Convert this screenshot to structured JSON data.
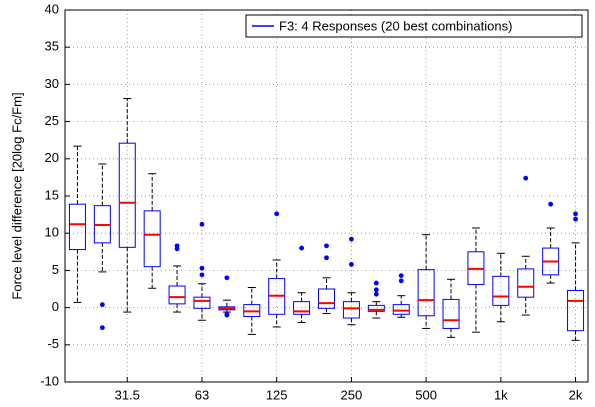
{
  "chart_data": {
    "type": "box",
    "y_label": "Force level difference [20log Fc/Fm]",
    "categories": [
      null,
      null,
      "31.5",
      null,
      null,
      "63",
      null,
      null,
      "125",
      null,
      null,
      "250",
      null,
      null,
      "500",
      null,
      null,
      "1k",
      null,
      null,
      "2k"
    ],
    "ylim": [
      -10,
      40
    ],
    "yticks": [
      -10,
      -5,
      0,
      5,
      10,
      15,
      20,
      25,
      30,
      35,
      40
    ],
    "grid": true,
    "legend": "upper right",
    "series": [
      {
        "name": "F3: 4 Responses (20 best combinations)",
        "color": "#0000ff",
        "median_color": "#ff0000",
        "whisker_color": "#000000",
        "boxes": [
          {
            "whislo": 0.7,
            "q1": 7.8,
            "med": 11.2,
            "q3": 13.9,
            "whishi": 21.7
          },
          {
            "whislo": 4.8,
            "q1": 8.7,
            "med": 11.1,
            "q3": 13.7,
            "whishi": 19.3,
            "fliers": [
              0.4,
              -2.7
            ]
          },
          {
            "whislo": -0.6,
            "q1": 8.1,
            "med": 14.1,
            "q3": 22.1,
            "whishi": 28.1
          },
          {
            "whislo": 2.6,
            "q1": 5.5,
            "med": 9.8,
            "q3": 13.0,
            "whishi": 18.0
          },
          {
            "whislo": -0.6,
            "q1": 0.5,
            "med": 1.4,
            "q3": 2.9,
            "whishi": 5.6,
            "fliers": [
              8.3,
              7.9
            ]
          },
          {
            "whislo": -1.7,
            "q1": -0.1,
            "med": 0.9,
            "q3": 1.4,
            "whishi": 3.2,
            "fliers": [
              11.2,
              5.3,
              4.4
            ]
          },
          {
            "whislo": -0.6,
            "q1": -0.3,
            "med": -0.1,
            "q3": 0.1,
            "whishi": 1.0,
            "fliers": [
              4.0,
              -0.9,
              -1.0
            ]
          },
          {
            "whislo": -3.6,
            "q1": -1.2,
            "med": -0.5,
            "q3": 0.4,
            "whishi": 2.7
          },
          {
            "whislo": -2.6,
            "q1": -0.9,
            "med": 1.6,
            "q3": 3.9,
            "whishi": 6.4,
            "fliers": [
              12.6
            ]
          },
          {
            "whislo": -2.0,
            "q1": -0.9,
            "med": -0.5,
            "q3": 0.8,
            "whishi": 2.0,
            "fliers": [
              8.0
            ]
          },
          {
            "whislo": -0.8,
            "q1": -0.1,
            "med": 0.6,
            "q3": 2.5,
            "whishi": 4.0,
            "fliers": [
              8.3,
              6.7
            ]
          },
          {
            "whislo": -2.3,
            "q1": -1.4,
            "med": -0.1,
            "q3": 0.8,
            "whishi": 2.0,
            "fliers": [
              9.2,
              5.8
            ]
          },
          {
            "whislo": -1.4,
            "q1": -0.5,
            "med": -0.3,
            "q3": 0.3,
            "whishi": 0.8,
            "fliers": [
              3.3,
              2.4,
              1.8
            ]
          },
          {
            "whislo": -1.3,
            "q1": -0.9,
            "med": -0.4,
            "q3": 0.4,
            "whishi": 1.6,
            "fliers": [
              4.3,
              3.6
            ]
          },
          {
            "whislo": -2.8,
            "q1": -1.1,
            "med": 1.0,
            "q3": 5.1,
            "whishi": 9.8
          },
          {
            "whislo": -4.0,
            "q1": -2.8,
            "med": -1.7,
            "q3": 1.1,
            "whishi": 3.8
          },
          {
            "whislo": -3.3,
            "q1": 3.1,
            "med": 5.2,
            "q3": 7.5,
            "whishi": 10.7
          },
          {
            "whislo": -1.9,
            "q1": 0.3,
            "med": 1.5,
            "q3": 4.2,
            "whishi": 7.3
          },
          {
            "whislo": -1.0,
            "q1": 1.4,
            "med": 2.8,
            "q3": 5.2,
            "whishi": 6.9,
            "fliers": [
              17.4
            ]
          },
          {
            "whislo": 3.3,
            "q1": 4.4,
            "med": 6.2,
            "q3": 8.0,
            "whishi": 10.7,
            "fliers": [
              13.9
            ]
          },
          {
            "whislo": -4.4,
            "q1": -3.1,
            "med": 0.9,
            "q3": 2.3,
            "whishi": 8.7,
            "fliers": [
              12.6,
              11.9
            ]
          }
        ]
      }
    ]
  }
}
